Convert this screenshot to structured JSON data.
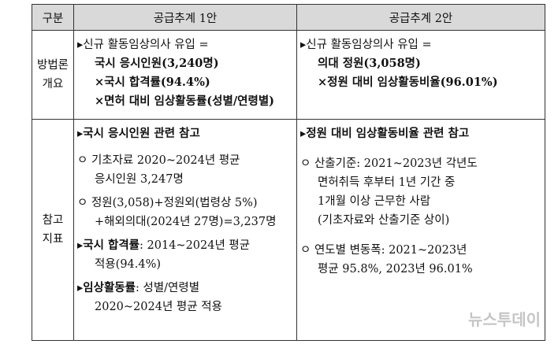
{
  "header": [
    "구분",
    "공급추계 1안",
    "공급추계 2안"
  ],
  "rows": [
    {
      "label": [
        "방법론",
        "개요"
      ],
      "cells": [
        [
          {
            "lines": [
              {
                "text": "▸신규 활동임상의사 유입 ="
              },
              {
                "strong": "국시 응시인원(3,240명)"
              },
              {
                "strong": "×국시 합격률(94.4%)"
              },
              {
                "strong": "×면허 대비 임상활동률(성별/연령별)"
              }
            ]
          }
        ],
        [
          {
            "lines": [
              {
                "text": "▸신규 활동임상의사 유입 ="
              },
              {
                "strong": "의대 정원(3,058명)"
              },
              {
                "strong": "×정원 대비 임상활동비율(96.01%)"
              }
            ]
          }
        ]
      ]
    },
    {
      "label": [
        "참고",
        "지표"
      ],
      "cells": [
        [
          {
            "lines": [
              {
                "strong": "▸국시 응시인원 관련 참고"
              }
            ]
          },
          {
            "lines": [
              {
                "text": "ㅇ 기초자료 2020~2024년 평균"
              },
              {
                "text": "응시인원 3,247명"
              }
            ]
          },
          {
            "lines": [
              {
                "text": "ㅇ 정원(3,058)+정원외(법령상 5%)"
              },
              {
                "text": "+해외의대(2024년 27명)=3,237명"
              }
            ]
          },
          {
            "lines": [
              {
                "strong": "▸국시 합격률",
                "text": ": 2014~2024년 평균"
              },
              {
                "text": "적용(94.4%)"
              }
            ]
          },
          {
            "lines": [
              {
                "strong": "▸임상활동률",
                "text": ": 성별/연령별"
              },
              {
                "text": "2020~2024년 평균 적용"
              }
            ]
          }
        ],
        [
          {
            "lines": [
              {
                "strong": "▸정원 대비 임상활동비율 관련 참고"
              }
            ]
          },
          {
            "lines": [
              {
                "text": "ㅇ 산출기준: 2021~2023년 각년도"
              },
              {
                "text": "면허취득 후부터 1년 기간 중"
              },
              {
                "text": "1개월 이상 근무한 사람"
              },
              {
                "text": "(기초자료와 산출기준 상이)"
              }
            ]
          },
          {
            "lines": [
              {
                "text": "ㅇ 연도별 변동폭: 2021~2023년"
              },
              {
                "text": "평균 95.8%, 2023년 96.01%"
              }
            ]
          }
        ]
      ]
    }
  ],
  "watermark": "뉴스투데이"
}
